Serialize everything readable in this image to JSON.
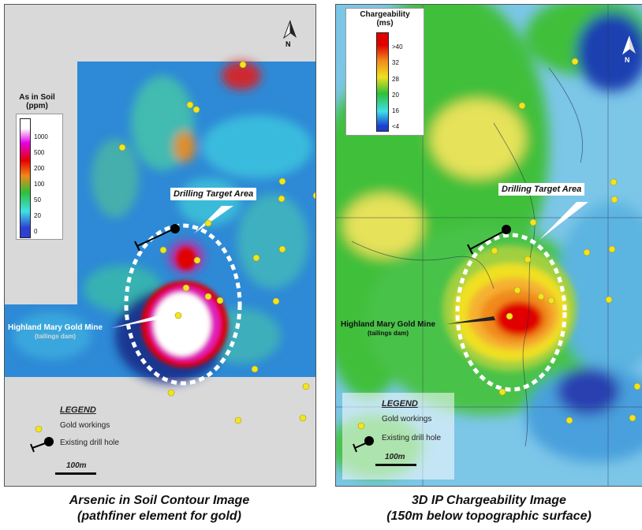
{
  "left_map": {
    "colorbar": {
      "title_line1": "As in Soil",
      "title_line2": "(ppm)",
      "labels": [
        "1000",
        "500",
        "200",
        "100",
        "50",
        "20",
        "0"
      ],
      "colors": [
        "#ffffff",
        "#e600e6",
        "#e60000",
        "#f08a1a",
        "#2fbf3a",
        "#3fe0e8",
        "#2f3fd0"
      ]
    },
    "target_label": "Drilling Target Area",
    "mine_label": "Highland Mary Gold Mine",
    "mine_sublabel": "(tailings dam)",
    "legend": {
      "title": "LEGEND",
      "gold_workings": "Gold workings",
      "drill_hole": "Existing drill hole"
    },
    "scale": "100m",
    "north": "N",
    "caption_line1": "Arsenic in Soil Contour Image",
    "caption_line2": "(pathfiner element for gold)"
  },
  "right_map": {
    "colorbar": {
      "title_line1": "Chargeability",
      "title_line2": "(ms)",
      "labels": [
        ">40",
        "32",
        "28",
        "20",
        "16",
        "<4"
      ],
      "colors": [
        "#e00000",
        "#f08a1a",
        "#f0e020",
        "#2fbf3a",
        "#3fe0e8",
        "#1a3fd0"
      ]
    },
    "target_label": "Drilling Target Area",
    "mine_label": "Highland Mary Gold Mine",
    "mine_sublabel": "(tailings dam)",
    "legend": {
      "title": "LEGEND",
      "gold_workings": "Gold workings",
      "drill_hole": "Existing drill hole"
    },
    "scale": "100m",
    "north": "N",
    "caption_line1": "3D IP Chargeability Image",
    "caption_line2": "(150m below topographic surface)"
  },
  "colors": {
    "gold_working": "#f2e51f",
    "target_ellipse": "#ffffff"
  }
}
